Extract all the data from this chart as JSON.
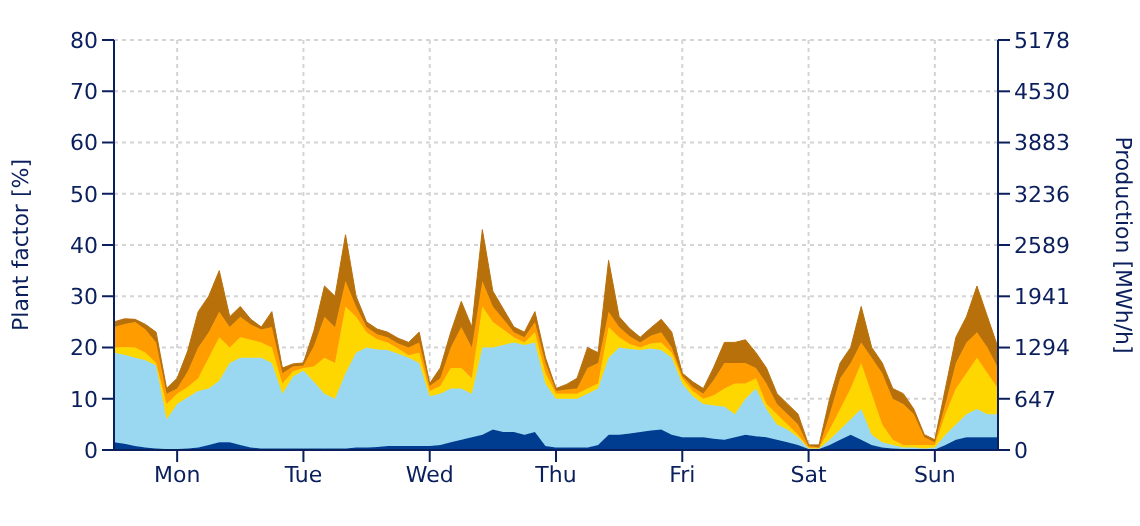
{
  "chart_data": {
    "type": "area",
    "stacked": true,
    "ylabel": "Plant factor [%]",
    "y2label": "Production [MWh/h]",
    "categories": [
      null,
      null,
      null,
      null,
      null,
      null,
      "Mon",
      null,
      null,
      null,
      null,
      null,
      null,
      null,
      null,
      null,
      null,
      null,
      "Tue",
      null,
      null,
      null,
      null,
      null,
      null,
      null,
      null,
      null,
      null,
      null,
      "Wed",
      null,
      null,
      null,
      null,
      null,
      null,
      null,
      null,
      null,
      null,
      null,
      "Thu",
      null,
      null,
      null,
      null,
      null,
      null,
      null,
      null,
      null,
      null,
      null,
      "Fri",
      null,
      null,
      null,
      null,
      null,
      null,
      null,
      null,
      null,
      null,
      null,
      "Sat",
      null,
      null,
      null,
      null,
      null,
      null,
      null,
      null,
      null,
      null,
      null,
      "Sun",
      null,
      null,
      null,
      null,
      null,
      null
    ],
    "ylim": [
      0,
      80
    ],
    "yticks": [
      0,
      10,
      20,
      30,
      40,
      50,
      60,
      70,
      80
    ],
    "y2lim": [
      0,
      5178
    ],
    "y2ticks": [
      0,
      647,
      1294,
      1941,
      2589,
      3236,
      3883,
      4530,
      5178
    ],
    "grid": true,
    "series": [
      {
        "color": "#003c8f",
        "values": [
          1.5,
          1.2,
          0.8,
          0.5,
          0.3,
          0.2,
          0.2,
          0.3,
          0.5,
          1,
          1.5,
          1.5,
          1,
          0.5,
          0.3,
          0.3,
          0.3,
          0.3,
          0.3,
          0.3,
          0.3,
          0.3,
          0.3,
          0.5,
          0.5,
          0.6,
          0.8,
          0.8,
          0.8,
          0.8,
          0.8,
          1,
          1.5,
          2,
          2.5,
          3,
          4,
          3.5,
          3.5,
          3,
          3.5,
          0.8,
          0.5,
          0.5,
          0.5,
          0.5,
          1,
          3,
          3,
          3.2,
          3.5,
          3.8,
          4,
          3,
          2.5,
          2.5,
          2.5,
          2.2,
          2,
          2.5,
          3,
          2.7,
          2.5,
          2,
          1.5,
          1,
          0.2,
          0.2,
          1,
          2,
          3,
          2,
          1,
          0.5,
          0.3,
          0.2,
          0.2,
          0.1,
          0.1,
          1,
          2,
          2.5,
          2.5,
          2.5,
          2.5
        ]
      },
      {
        "color": "#99d8f0",
        "values": [
          17.5,
          17.4,
          17.2,
          17,
          16.2,
          5.8,
          8.8,
          10,
          11,
          11,
          12,
          15.5,
          17,
          17.5,
          17.7,
          16.7,
          10.7,
          14,
          15.2,
          13,
          10.7,
          9.7,
          14.7,
          18.5,
          19.5,
          19,
          18.7,
          18,
          17.2,
          16.2,
          9.7,
          10,
          10.5,
          10,
          8.5,
          17,
          16,
          17,
          17.5,
          17.5,
          17.5,
          12.2,
          9.5,
          9.5,
          9.5,
          10.5,
          11,
          15,
          17,
          16.5,
          16,
          16,
          15.5,
          15,
          10.5,
          8,
          6.5,
          6.5,
          6.5,
          4.5,
          7,
          9.3,
          5.5,
          3,
          2.5,
          1.5,
          0.1,
          0.1,
          1,
          2,
          3,
          6,
          2,
          1,
          0.7,
          0.3,
          0.3,
          0.2,
          0.4,
          2,
          3,
          4.5,
          5.5,
          4.5,
          4.5
        ]
      },
      {
        "color": "#ffd700",
        "values": [
          1,
          1.5,
          2,
          1.5,
          0.5,
          3,
          2,
          2,
          2.5,
          6,
          8.5,
          3,
          4,
          3.5,
          3,
          3,
          2,
          1,
          0.5,
          3,
          7,
          7,
          13,
          7,
          3,
          2,
          1.5,
          1,
          0.5,
          2,
          1,
          1.5,
          4,
          4,
          3,
          8,
          5,
          3,
          1,
          0.5,
          2,
          2,
          1,
          1,
          1,
          1,
          1,
          6,
          2,
          1,
          0.5,
          1,
          1.5,
          1,
          1,
          1,
          1,
          2,
          3.5,
          6,
          3,
          2,
          1,
          2,
          1,
          0.5,
          0.2,
          0.1,
          2,
          4,
          6,
          9,
          8,
          3.5,
          1,
          0.5,
          0.5,
          0.7,
          0.5,
          4,
          7,
          8,
          10,
          8,
          5
        ]
      },
      {
        "color": "#ff9d00",
        "values": [
          4,
          4.5,
          5,
          4.5,
          4,
          2,
          1,
          3,
          6,
          5,
          5,
          4,
          4,
          3,
          2.5,
          4,
          2,
          1,
          0.5,
          4,
          8,
          7,
          5,
          2,
          1,
          1,
          1,
          1,
          1.5,
          2,
          1,
          1.5,
          4,
          8,
          6,
          5,
          3,
          2,
          1,
          1,
          2,
          2,
          0.5,
          0.8,
          1,
          4,
          4,
          3,
          2,
          1.5,
          1,
          1.5,
          2,
          1,
          0.5,
          0.8,
          1,
          3,
          5,
          4,
          4,
          2,
          4,
          2,
          2,
          2,
          0.3,
          0.1,
          3,
          6,
          5,
          4,
          7,
          10,
          8,
          8,
          6,
          1.5,
          0.5,
          2,
          5,
          6,
          5,
          5,
          4
        ]
      },
      {
        "color": "#b8700a",
        "values": [
          1,
          1,
          0.5,
          1,
          2,
          1,
          2,
          4,
          7,
          7,
          8,
          2,
          2,
          1,
          0.5,
          3,
          1,
          0.5,
          0.5,
          3,
          6,
          6,
          9,
          2,
          1,
          1,
          1,
          1,
          1,
          2,
          0.5,
          2,
          3,
          5,
          4,
          10,
          3,
          2,
          1,
          1,
          2,
          1,
          0.5,
          1,
          2,
          4,
          2,
          10,
          2,
          1.5,
          1,
          1.5,
          2.5,
          3,
          0.5,
          1,
          1,
          2.5,
          4,
          4,
          4.5,
          3,
          3,
          2,
          2,
          2,
          0.2,
          0.5,
          3,
          3,
          3,
          7,
          2,
          2,
          2,
          2,
          1,
          0.5,
          0.5,
          3,
          5,
          5,
          9,
          6,
          4
        ]
      }
    ]
  }
}
